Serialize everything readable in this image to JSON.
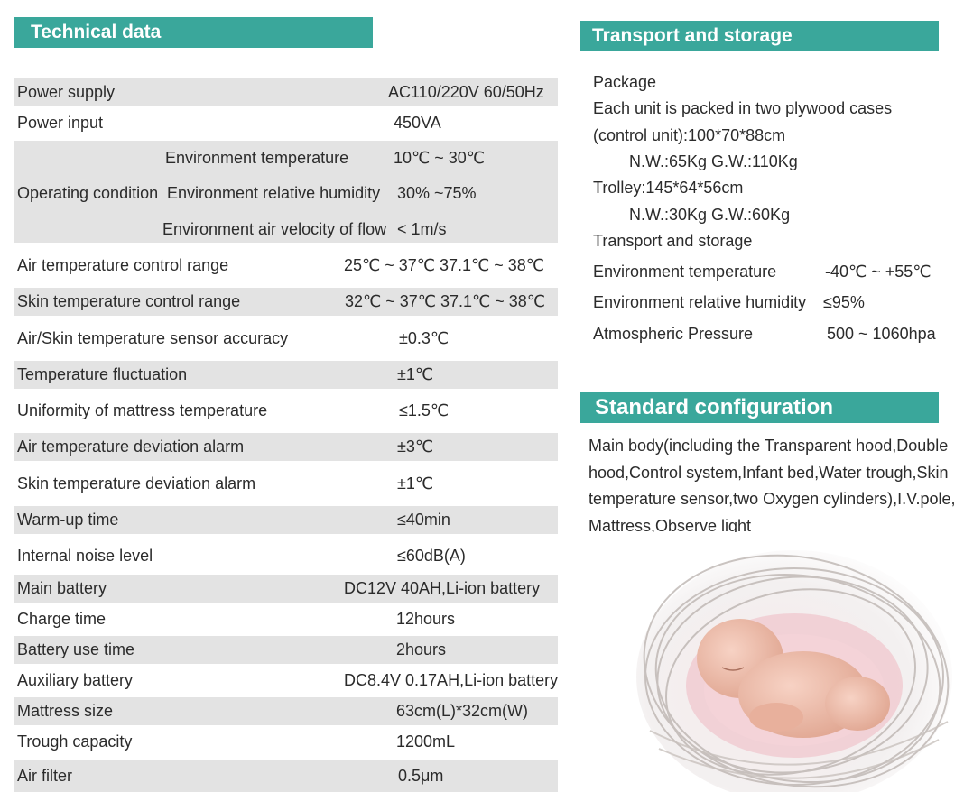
{
  "technical": {
    "title": "Technical data",
    "power_supply": {
      "label": "Power supply",
      "value": "AC110/220V  60/50Hz"
    },
    "power_input": {
      "label": "Power input",
      "value": "450VA"
    },
    "operating": {
      "label": "Operating condition",
      "env_temp": {
        "label": "Environment temperature",
        "value": "10℃ ~ 30℃"
      },
      "env_humidity": {
        "label": "Environment relative humidity",
        "value": "30% ~75%"
      },
      "env_air": {
        "label": "Environment air velocity of flow",
        "value": "< 1m/s"
      }
    },
    "rows": [
      {
        "label": "Air temperature control range",
        "value": "25℃ ~ 37℃  37.1℃ ~ 38℃"
      },
      {
        "label": "Skin temperature control range",
        "value": "32℃ ~ 37℃  37.1℃ ~ 38℃"
      },
      {
        "label": "Air/Skin temperature sensor accuracy",
        "value": "±0.3℃"
      },
      {
        "label": "Temperature fluctuation",
        "value": "±1℃"
      },
      {
        "label": "Uniformity of mattress temperature",
        "value": "≤1.5℃"
      },
      {
        "label": "Air temperature deviation alarm",
        "value": "±3℃"
      },
      {
        "label": "Skin temperature deviation alarm",
        "value": "±1℃"
      },
      {
        "label": "Warm-up time",
        "value": "≤40min"
      },
      {
        "label": "Internal noise level",
        "value": "≤60dB(A)"
      },
      {
        "label": "Main battery",
        "value": "DC12V 40AH,Li-ion battery"
      },
      {
        "label": "Charge time",
        "value": "12hours"
      },
      {
        "label": "Battery use time",
        "value": "2hours"
      },
      {
        "label": "Auxiliary battery",
        "value": "DC8.4V 0.17AH,Li-ion battery"
      },
      {
        "label": "Mattress size",
        "value": "63cm(L)*32cm(W)"
      },
      {
        "label": "Trough capacity",
        "value": "1200mL"
      },
      {
        "label": "Air filter",
        "value": "0.5μm"
      }
    ]
  },
  "transport": {
    "title": "Transport and storage",
    "package": "Package",
    "packed": "Each unit is packed in two plywood cases",
    "control_unit": "(control unit):100*70*88cm",
    "control_weight": "N.W.:65Kg   G.W.:110Kg",
    "trolley": "Trolley:145*64*56cm",
    "trolley_weight": "N.W.:30Kg   G.W.:60Kg",
    "storage_heading": "Transport and storage",
    "env_temp": {
      "label": "Environment temperature",
      "value": "-40℃ ~ +55℃"
    },
    "env_humidity": {
      "label": "Environment relative humidity",
      "value": "≤95%"
    },
    "pressure": {
      "label": "Atmospheric Pressure",
      "value": "500 ~ 1060hpa"
    }
  },
  "standard": {
    "title": "Standard configuration",
    "text": "Main body(including the Transparent hood,Double hood,Control system,Infant bed,Water trough,Skin temperature sensor,two Oxygen cylinders),I.V.pole, Mattress,Observe light"
  }
}
